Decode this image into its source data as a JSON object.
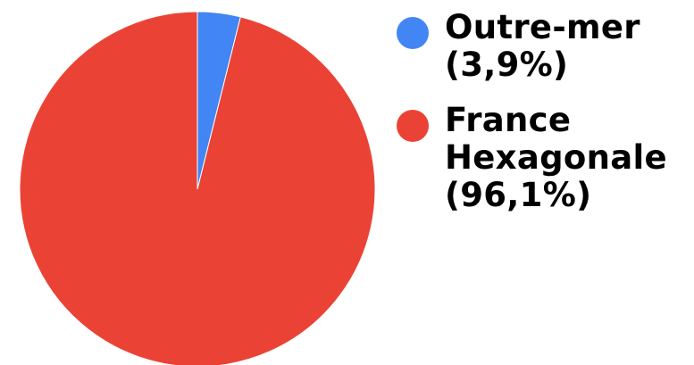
{
  "chart_data": {
    "type": "pie",
    "title": "",
    "start_angle_deg": 0,
    "direction": "clockwise",
    "slices": [
      {
        "label_lines": [
          "Outre-mer",
          "(3,9%)"
        ],
        "value": 3.9,
        "color": "#4285f4"
      },
      {
        "label_lines": [
          "France",
          "Hexagonale",
          "(96,1%)"
        ],
        "value": 96.1,
        "color": "#ea4335"
      }
    ],
    "legend_position": "right"
  }
}
